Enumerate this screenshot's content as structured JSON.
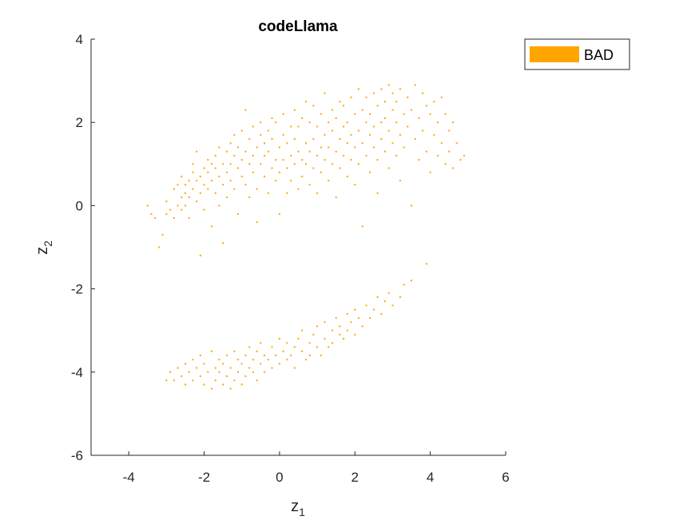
{
  "chart_data": {
    "type": "scatter",
    "title": "codeLlama",
    "xlabel": {
      "base": "z",
      "sub": "1"
    },
    "ylabel": {
      "base": "z",
      "sub": "2"
    },
    "xlim": [
      -5,
      6
    ],
    "ylim": [
      -6,
      4
    ],
    "xticks": [
      -4,
      -2,
      0,
      2,
      4,
      6
    ],
    "yticks": [
      -6,
      -4,
      -2,
      0,
      2,
      4
    ],
    "xtick_labels": [
      "-4",
      "-2",
      "0",
      "2",
      "4",
      "6"
    ],
    "ytick_labels": [
      "-6",
      "-4",
      "-2",
      "0",
      "2",
      "4"
    ],
    "grid": false,
    "legend": {
      "position": "top-right",
      "entries": [
        "BAD"
      ]
    },
    "series": [
      {
        "name": "BAD",
        "color": "#FFA500",
        "points": [
          [
            -3.5,
            0.0
          ],
          [
            -3.4,
            -0.2
          ],
          [
            -3.3,
            -0.3
          ],
          [
            -3.2,
            -1.0
          ],
          [
            -3.1,
            -0.7
          ],
          [
            -3.0,
            -0.2
          ],
          [
            -3.0,
            0.1
          ],
          [
            -2.9,
            -0.1
          ],
          [
            -2.8,
            0.4
          ],
          [
            -2.8,
            -0.3
          ],
          [
            -2.7,
            0.0
          ],
          [
            -2.7,
            0.5
          ],
          [
            -2.6,
            0.2
          ],
          [
            -2.6,
            -0.1
          ],
          [
            -2.6,
            0.7
          ],
          [
            -2.5,
            0.3
          ],
          [
            -2.5,
            0.0
          ],
          [
            -2.5,
            0.5
          ],
          [
            -2.4,
            0.6
          ],
          [
            -2.4,
            0.2
          ],
          [
            -2.4,
            -0.3
          ],
          [
            -2.3,
            0.8
          ],
          [
            -2.3,
            0.4
          ],
          [
            -2.3,
            1.0
          ],
          [
            -2.2,
            0.1
          ],
          [
            -2.2,
            0.6
          ],
          [
            -2.2,
            1.3
          ],
          [
            -2.1,
            0.7
          ],
          [
            -2.1,
            0.3
          ],
          [
            -2.1,
            -1.2
          ],
          [
            -2.0,
            0.9
          ],
          [
            -2.0,
            0.5
          ],
          [
            -2.0,
            -0.1
          ],
          [
            -1.9,
            1.1
          ],
          [
            -1.9,
            0.8
          ],
          [
            -1.9,
            0.4
          ],
          [
            -1.8,
            0.6
          ],
          [
            -1.8,
            1.0
          ],
          [
            -1.8,
            -0.5
          ],
          [
            -1.7,
            1.2
          ],
          [
            -1.7,
            0.3
          ],
          [
            -1.7,
            0.9
          ],
          [
            -1.6,
            0.7
          ],
          [
            -1.6,
            1.4
          ],
          [
            -1.6,
            0.0
          ],
          [
            -1.5,
            1.0
          ],
          [
            -1.5,
            0.5
          ],
          [
            -1.5,
            -0.9
          ],
          [
            -1.4,
            1.3
          ],
          [
            -1.4,
            0.8
          ],
          [
            -1.4,
            0.2
          ],
          [
            -1.3,
            1.5
          ],
          [
            -1.3,
            1.0
          ],
          [
            -1.3,
            0.6
          ],
          [
            -1.2,
            1.2
          ],
          [
            -1.2,
            0.4
          ],
          [
            -1.2,
            1.7
          ],
          [
            -1.1,
            0.9
          ],
          [
            -1.1,
            1.4
          ],
          [
            -1.1,
            -0.2
          ],
          [
            -1.0,
            1.1
          ],
          [
            -1.0,
            0.7
          ],
          [
            -1.0,
            1.8
          ],
          [
            -0.9,
            1.3
          ],
          [
            -0.9,
            0.5
          ],
          [
            -0.9,
            2.3
          ],
          [
            -0.8,
            1.0
          ],
          [
            -0.8,
            1.6
          ],
          [
            -0.8,
            0.2
          ],
          [
            -0.7,
            1.2
          ],
          [
            -0.7,
            0.8
          ],
          [
            -0.7,
            1.9
          ],
          [
            -0.6,
            1.4
          ],
          [
            -0.6,
            0.4
          ],
          [
            -0.6,
            -0.4
          ],
          [
            -0.5,
            1.7
          ],
          [
            -0.5,
            1.0
          ],
          [
            -0.5,
            2.0
          ],
          [
            -0.4,
            0.7
          ],
          [
            -0.4,
            1.5
          ],
          [
            -0.4,
            1.2
          ],
          [
            -0.3,
            1.8
          ],
          [
            -0.3,
            0.3
          ],
          [
            -0.3,
            1.3
          ],
          [
            -0.2,
            2.1
          ],
          [
            -0.2,
            0.9
          ],
          [
            -0.2,
            1.6
          ],
          [
            -0.1,
            1.1
          ],
          [
            -0.1,
            0.6
          ],
          [
            -0.1,
            2.0
          ],
          [
            0.0,
            1.4
          ],
          [
            0.0,
            0.8
          ],
          [
            0.0,
            -0.2
          ],
          [
            0.1,
            1.7
          ],
          [
            0.1,
            1.1
          ],
          [
            0.1,
            2.2
          ],
          [
            0.2,
            0.9
          ],
          [
            0.2,
            1.5
          ],
          [
            0.2,
            0.3
          ],
          [
            0.3,
            1.9
          ],
          [
            0.3,
            1.2
          ],
          [
            0.3,
            0.6
          ],
          [
            0.4,
            2.3
          ],
          [
            0.4,
            1.0
          ],
          [
            0.4,
            1.6
          ],
          [
            0.5,
            0.4
          ],
          [
            0.5,
            1.3
          ],
          [
            0.5,
            1.9
          ],
          [
            0.6,
            1.1
          ],
          [
            0.6,
            2.1
          ],
          [
            0.6,
            0.7
          ],
          [
            0.7,
            1.5
          ],
          [
            0.7,
            1.0
          ],
          [
            0.7,
            2.5
          ],
          [
            0.8,
            1.3
          ],
          [
            0.8,
            0.5
          ],
          [
            0.8,
            2.0
          ],
          [
            0.9,
            1.6
          ],
          [
            0.9,
            0.9
          ],
          [
            0.9,
            2.4
          ],
          [
            1.0,
            1.2
          ],
          [
            1.0,
            1.9
          ],
          [
            1.0,
            0.3
          ],
          [
            1.1,
            1.4
          ],
          [
            1.1,
            2.2
          ],
          [
            1.1,
            0.8
          ],
          [
            1.2,
            2.7
          ],
          [
            1.2,
            1.1
          ],
          [
            1.2,
            1.7
          ],
          [
            1.3,
            2.0
          ],
          [
            1.3,
            0.6
          ],
          [
            1.3,
            1.4
          ],
          [
            1.4,
            2.3
          ],
          [
            1.4,
            1.0
          ],
          [
            1.4,
            1.8
          ],
          [
            1.5,
            1.3
          ],
          [
            1.5,
            2.1
          ],
          [
            1.5,
            0.2
          ],
          [
            1.6,
            1.6
          ],
          [
            1.6,
            2.5
          ],
          [
            1.6,
            0.9
          ],
          [
            1.7,
            1.9
          ],
          [
            1.7,
            1.2
          ],
          [
            1.7,
            2.4
          ],
          [
            1.8,
            0.7
          ],
          [
            1.8,
            1.5
          ],
          [
            1.8,
            2.0
          ],
          [
            1.9,
            1.1
          ],
          [
            1.9,
            2.6
          ],
          [
            1.9,
            1.7
          ],
          [
            2.0,
            2.2
          ],
          [
            2.0,
            0.5
          ],
          [
            2.0,
            1.4
          ],
          [
            2.1,
            1.8
          ],
          [
            2.1,
            2.8
          ],
          [
            2.1,
            1.0
          ],
          [
            2.2,
            2.3
          ],
          [
            2.2,
            1.5
          ],
          [
            2.2,
            -0.5
          ],
          [
            2.3,
            2.0
          ],
          [
            2.3,
            1.2
          ],
          [
            2.3,
            2.6
          ],
          [
            2.4,
            1.7
          ],
          [
            2.4,
            0.8
          ],
          [
            2.4,
            2.2
          ],
          [
            2.5,
            1.4
          ],
          [
            2.5,
            2.7
          ],
          [
            2.5,
            1.9
          ],
          [
            2.6,
            0.3
          ],
          [
            2.6,
            2.4
          ],
          [
            2.6,
            1.1
          ],
          [
            2.7,
            2.0
          ],
          [
            2.7,
            2.8
          ],
          [
            2.7,
            1.6
          ],
          [
            2.8,
            1.3
          ],
          [
            2.8,
            2.5
          ],
          [
            2.8,
            2.1
          ],
          [
            2.9,
            1.8
          ],
          [
            2.9,
            2.9
          ],
          [
            2.9,
            0.9
          ],
          [
            3.0,
            2.3
          ],
          [
            3.0,
            1.5
          ],
          [
            3.0,
            2.7
          ],
          [
            3.1,
            2.0
          ],
          [
            3.1,
            1.2
          ],
          [
            3.1,
            2.5
          ],
          [
            3.2,
            1.7
          ],
          [
            3.2,
            2.8
          ],
          [
            3.2,
            0.6
          ],
          [
            3.3,
            2.2
          ],
          [
            3.3,
            1.4
          ],
          [
            3.4,
            2.6
          ],
          [
            3.4,
            1.9
          ],
          [
            3.5,
            0.0
          ],
          [
            3.5,
            2.3
          ],
          [
            3.6,
            2.9
          ],
          [
            3.6,
            1.6
          ],
          [
            3.7,
            2.1
          ],
          [
            3.7,
            1.1
          ],
          [
            3.8,
            2.7
          ],
          [
            3.8,
            1.8
          ],
          [
            3.9,
            2.4
          ],
          [
            3.9,
            1.3
          ],
          [
            4.0,
            2.2
          ],
          [
            4.0,
            0.8
          ],
          [
            4.1,
            1.7
          ],
          [
            4.1,
            2.5
          ],
          [
            4.2,
            1.2
          ],
          [
            4.2,
            2.0
          ],
          [
            4.3,
            1.5
          ],
          [
            4.3,
            2.6
          ],
          [
            4.4,
            1.0
          ],
          [
            4.4,
            2.2
          ],
          [
            4.5,
            1.8
          ],
          [
            4.5,
            1.3
          ],
          [
            4.6,
            2.0
          ],
          [
            4.6,
            0.9
          ],
          [
            4.7,
            1.5
          ],
          [
            4.8,
            1.1
          ],
          [
            4.9,
            1.2
          ],
          [
            -3.0,
            -4.2
          ],
          [
            -2.9,
            -4.0
          ],
          [
            -2.8,
            -4.2
          ],
          [
            -2.7,
            -3.9
          ],
          [
            -2.6,
            -4.1
          ],
          [
            -2.5,
            -4.3
          ],
          [
            -2.5,
            -3.8
          ],
          [
            -2.4,
            -4.0
          ],
          [
            -2.3,
            -3.7
          ],
          [
            -2.3,
            -4.2
          ],
          [
            -2.2,
            -3.9
          ],
          [
            -2.1,
            -4.1
          ],
          [
            -2.1,
            -3.6
          ],
          [
            -2.0,
            -4.3
          ],
          [
            -2.0,
            -3.8
          ],
          [
            -1.9,
            -4.0
          ],
          [
            -1.8,
            -3.5
          ],
          [
            -1.8,
            -4.4
          ],
          [
            -1.7,
            -3.9
          ],
          [
            -1.7,
            -4.2
          ],
          [
            -1.6,
            -3.7
          ],
          [
            -1.6,
            -4.0
          ],
          [
            -1.5,
            -4.3
          ],
          [
            -1.5,
            -3.8
          ],
          [
            -1.4,
            -4.1
          ],
          [
            -1.4,
            -3.6
          ],
          [
            -1.3,
            -4.4
          ],
          [
            -1.3,
            -3.9
          ],
          [
            -1.2,
            -4.2
          ],
          [
            -1.2,
            -3.5
          ],
          [
            -1.1,
            -4.0
          ],
          [
            -1.1,
            -3.7
          ],
          [
            -1.0,
            -4.3
          ],
          [
            -1.0,
            -3.8
          ],
          [
            -0.9,
            -4.1
          ],
          [
            -0.9,
            -3.6
          ],
          [
            -0.8,
            -3.9
          ],
          [
            -0.8,
            -3.4
          ],
          [
            -0.7,
            -4.0
          ],
          [
            -0.7,
            -3.7
          ],
          [
            -0.6,
            -3.5
          ],
          [
            -0.6,
            -4.2
          ],
          [
            -0.5,
            -3.8
          ],
          [
            -0.5,
            -3.3
          ],
          [
            -0.4,
            -3.6
          ],
          [
            -0.4,
            -4.0
          ],
          [
            -0.3,
            -3.7
          ],
          [
            -0.2,
            -3.4
          ],
          [
            -0.2,
            -3.9
          ],
          [
            -0.1,
            -3.6
          ],
          [
            0.0,
            -3.8
          ],
          [
            0.0,
            -3.2
          ],
          [
            0.1,
            -3.5
          ],
          [
            0.2,
            -3.7
          ],
          [
            0.2,
            -3.3
          ],
          [
            0.3,
            -3.6
          ],
          [
            0.4,
            -3.4
          ],
          [
            0.4,
            -3.9
          ],
          [
            0.5,
            -3.2
          ],
          [
            0.6,
            -3.5
          ],
          [
            0.6,
            -3.0
          ],
          [
            0.7,
            -3.7
          ],
          [
            0.8,
            -3.3
          ],
          [
            0.8,
            -3.6
          ],
          [
            0.9,
            -3.1
          ],
          [
            1.0,
            -3.4
          ],
          [
            1.0,
            -2.9
          ],
          [
            1.1,
            -3.6
          ],
          [
            1.2,
            -3.2
          ],
          [
            1.2,
            -2.8
          ],
          [
            1.3,
            -3.4
          ],
          [
            1.4,
            -3.0
          ],
          [
            1.4,
            -3.3
          ],
          [
            1.5,
            -2.7
          ],
          [
            1.6,
            -3.1
          ],
          [
            1.6,
            -2.9
          ],
          [
            1.7,
            -3.2
          ],
          [
            1.8,
            -2.6
          ],
          [
            1.8,
            -3.0
          ],
          [
            1.9,
            -2.8
          ],
          [
            2.0,
            -2.5
          ],
          [
            2.0,
            -3.1
          ],
          [
            2.1,
            -2.7
          ],
          [
            2.2,
            -2.9
          ],
          [
            2.3,
            -2.4
          ],
          [
            2.4,
            -2.7
          ],
          [
            2.5,
            -2.5
          ],
          [
            2.6,
            -2.2
          ],
          [
            2.7,
            -2.6
          ],
          [
            2.8,
            -2.3
          ],
          [
            2.9,
            -2.1
          ],
          [
            3.0,
            -2.4
          ],
          [
            3.2,
            -2.2
          ],
          [
            3.3,
            -1.9
          ],
          [
            3.5,
            -1.8
          ],
          [
            3.9,
            -1.4
          ]
        ]
      }
    ]
  }
}
